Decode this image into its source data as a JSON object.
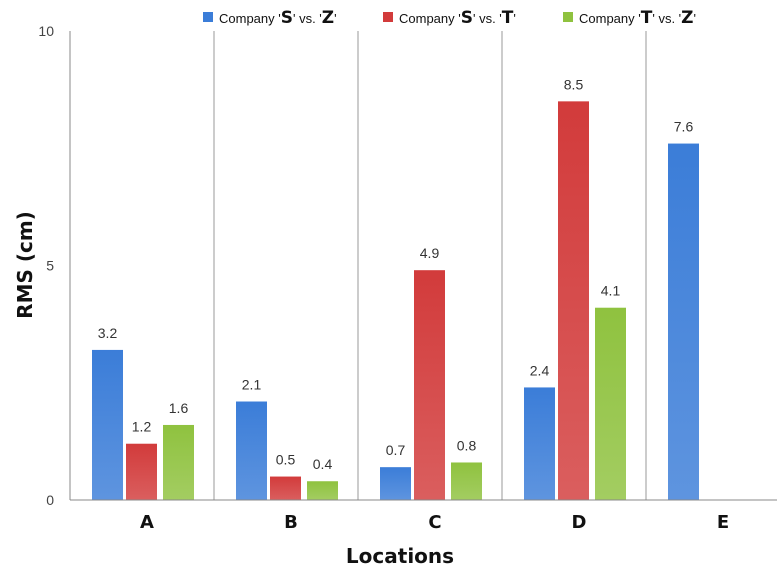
{
  "chart_data": {
    "type": "bar",
    "xlabel": "Locations",
    "ylabel": "RMS (cm)",
    "ylim": [
      0,
      10
    ],
    "yticks": [
      0,
      5,
      10
    ],
    "categories": [
      "A",
      "B",
      "C",
      "D",
      "E"
    ],
    "grid": "vertical separators between categories",
    "legend_position": "top",
    "series": [
      {
        "name": "Company 'S' vs. 'Z'",
        "legend_parts": [
          "Company '",
          "S",
          "' vs. '",
          "Z",
          "'"
        ],
        "color": "#3b7dd8",
        "values": [
          3.2,
          2.1,
          0.7,
          2.4,
          7.6
        ]
      },
      {
        "name": "Company 'S' vs. 'T'",
        "legend_parts": [
          "Company '",
          "S",
          "' vs. '",
          "T",
          "'"
        ],
        "color": "#d23b3b",
        "values": [
          1.2,
          0.5,
          4.9,
          8.5,
          null
        ]
      },
      {
        "name": "Company 'T' vs. 'Z'",
        "legend_parts": [
          "Company '",
          "T",
          "' vs. '",
          "Z",
          "'"
        ],
        "color": "#8fc23f",
        "values": [
          1.6,
          0.4,
          0.8,
          4.1,
          null
        ]
      }
    ]
  }
}
